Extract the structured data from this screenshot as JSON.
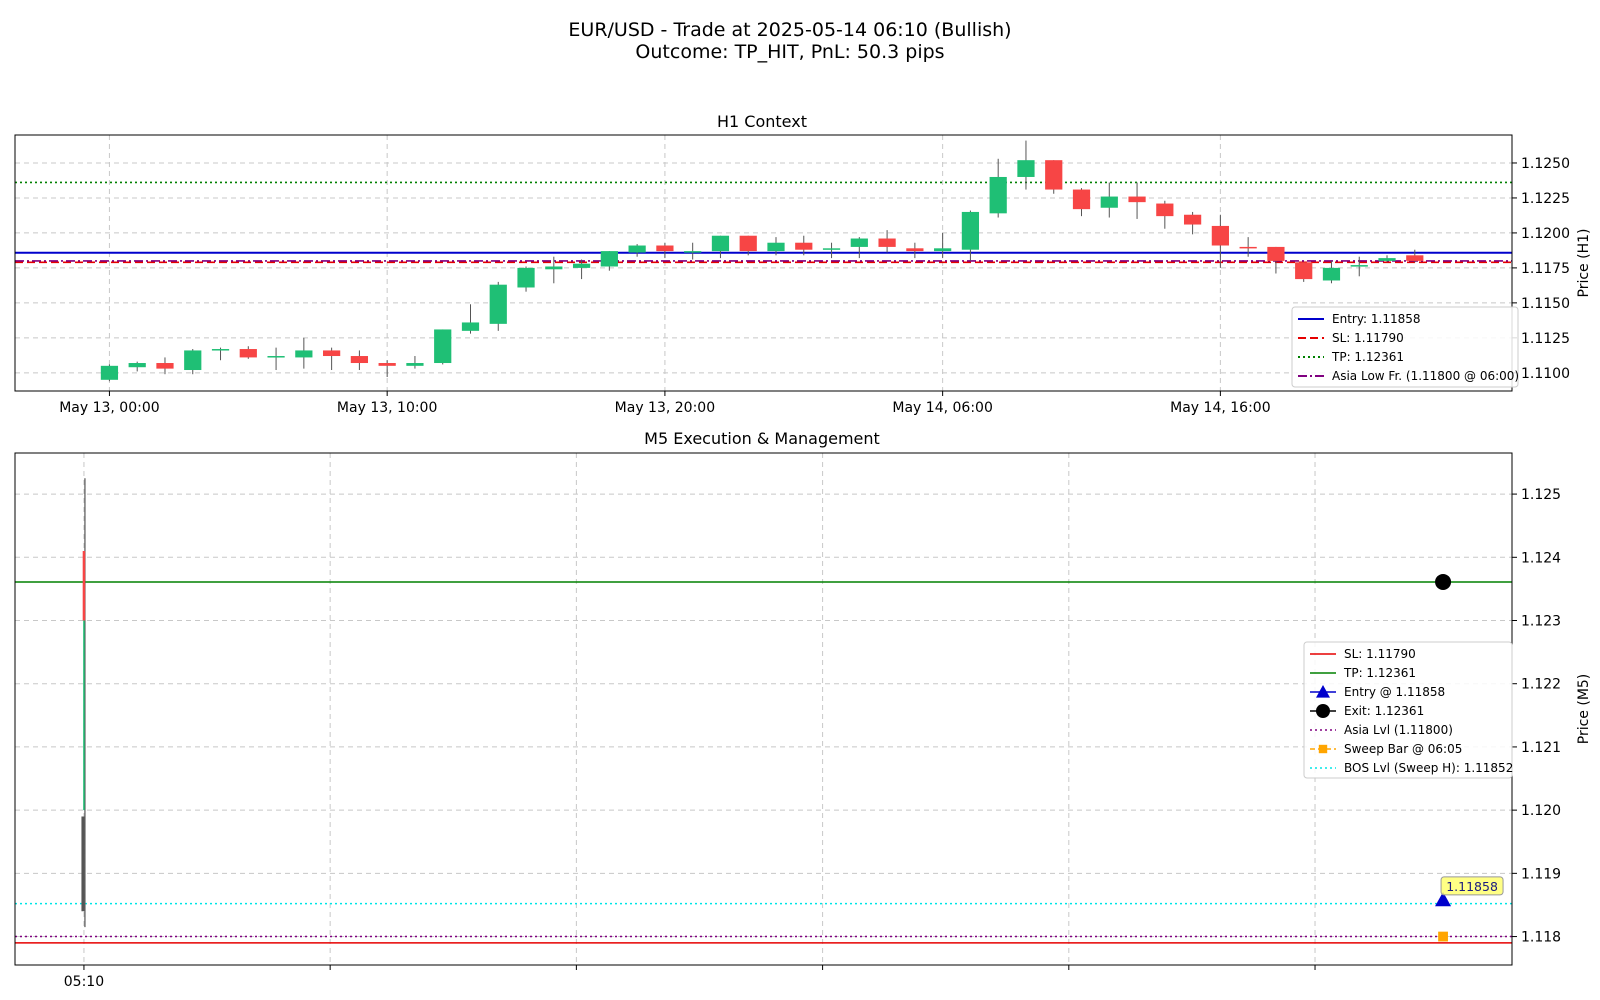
{
  "figure": {
    "title_line1": "EUR/USD - Trade at 2025-05-14 06:10 (Bullish)",
    "title_line2": "Outcome: TP_HIT, PnL: 50.3 pips"
  },
  "colors": {
    "bull": "#1fbf75",
    "bear": "#f74545",
    "entry": "#0000cc",
    "sl": "#e60000",
    "tp": "#008000",
    "asia": "#800080",
    "sweep": "#ffa500",
    "bos": "#00e5e5",
    "grid": "#c8c8c8"
  },
  "chart_data": [
    {
      "type": "candlestick",
      "title": "H1 Context",
      "ylabel": "Price (H1)",
      "ylim": [
        1.1087,
        1.127
      ],
      "yticks": [
        "1.1100",
        "1.1125",
        "1.1150",
        "1.1175",
        "1.1200",
        "1.1225",
        "1.1250"
      ],
      "ytick_values": [
        1.11,
        1.1125,
        1.115,
        1.1175,
        1.12,
        1.1225,
        1.125
      ],
      "xtick_labels": [
        "May 13, 00:00",
        "May 13, 10:00",
        "May 13, 20:00",
        "May 14, 06:00",
        "May 14, 16:00"
      ],
      "xtick_index": [
        0,
        10,
        20,
        30,
        40
      ],
      "x_index_range": [
        -3.4,
        50.5
      ],
      "grid": true,
      "legend_position": "lower-right",
      "levels": [
        {
          "name": "Entry: 1.11858",
          "value": 1.11858,
          "style": "solid",
          "color_key": "entry"
        },
        {
          "name": "SL: 1.11790",
          "value": 1.1179,
          "style": "dashed",
          "color_key": "sl"
        },
        {
          "name": "TP: 1.12361",
          "value": 1.12361,
          "style": "dotted",
          "color_key": "tp"
        },
        {
          "name": "Asia Low Fr. (1.11800 @ 06:00)",
          "value": 1.118,
          "style": "dashdot",
          "color_key": "asia"
        }
      ],
      "candles": [
        [
          1.1095,
          1.1106,
          1.1094,
          1.1105
        ],
        [
          1.1104,
          1.1108,
          1.1101,
          1.1107
        ],
        [
          1.1107,
          1.1111,
          1.1099,
          1.1103
        ],
        [
          1.1102,
          1.1117,
          1.1099,
          1.1116
        ],
        [
          1.1116,
          1.1118,
          1.1109,
          1.1117
        ],
        [
          1.1117,
          1.1119,
          1.111,
          1.1111
        ],
        [
          1.1112,
          1.1118,
          1.1102,
          1.1112
        ],
        [
          1.1111,
          1.1125,
          1.1103,
          1.1116
        ],
        [
          1.1116,
          1.1118,
          1.1102,
          1.1112
        ],
        [
          1.1112,
          1.1116,
          1.1102,
          1.1107
        ],
        [
          1.1107,
          1.1109,
          1.1097,
          1.1105
        ],
        [
          1.1105,
          1.1112,
          1.1103,
          1.1107
        ],
        [
          1.1107,
          1.1131,
          1.1106,
          1.1131
        ],
        [
          1.113,
          1.1149,
          1.1128,
          1.1136
        ],
        [
          1.1135,
          1.1165,
          1.113,
          1.1163
        ],
        [
          1.1161,
          1.1176,
          1.1158,
          1.1175
        ],
        [
          1.1174,
          1.1183,
          1.1164,
          1.1176
        ],
        [
          1.1175,
          1.1181,
          1.1167,
          1.1178
        ],
        [
          1.1176,
          1.1187,
          1.1173,
          1.1187
        ],
        [
          1.1186,
          1.1192,
          1.1183,
          1.1191
        ],
        [
          1.1191,
          1.1193,
          1.1182,
          1.1187
        ],
        [
          1.1187,
          1.1193,
          1.1181,
          1.1187
        ],
        [
          1.1187,
          1.1198,
          1.1182,
          1.1198
        ],
        [
          1.1198,
          1.1198,
          1.1184,
          1.1187
        ],
        [
          1.1187,
          1.1197,
          1.1184,
          1.1193
        ],
        [
          1.1193,
          1.1198,
          1.1184,
          1.1188
        ],
        [
          1.1188,
          1.1193,
          1.1182,
          1.1189
        ],
        [
          1.119,
          1.1197,
          1.1182,
          1.1196
        ],
        [
          1.1196,
          1.1202,
          1.1186,
          1.119
        ],
        [
          1.1189,
          1.1193,
          1.1182,
          1.1187
        ],
        [
          1.1187,
          1.12,
          1.1182,
          1.1189
        ],
        [
          1.1188,
          1.1216,
          1.118,
          1.1215
        ],
        [
          1.1214,
          1.1253,
          1.1211,
          1.124
        ],
        [
          1.124,
          1.1266,
          1.1231,
          1.1252
        ],
        [
          1.1252,
          1.1252,
          1.1228,
          1.1231
        ],
        [
          1.1231,
          1.1232,
          1.1212,
          1.1217
        ],
        [
          1.1218,
          1.1236,
          1.1211,
          1.1226
        ],
        [
          1.1226,
          1.1236,
          1.121,
          1.1222
        ],
        [
          1.1221,
          1.1223,
          1.1203,
          1.1212
        ],
        [
          1.1213,
          1.1215,
          1.1199,
          1.1206
        ],
        [
          1.1205,
          1.1213,
          1.1175,
          1.1191
        ],
        [
          1.119,
          1.1197,
          1.1183,
          1.1189
        ],
        [
          1.119,
          1.119,
          1.1171,
          1.118
        ],
        [
          1.1179,
          1.1179,
          1.1165,
          1.1167
        ],
        [
          1.1166,
          1.118,
          1.1164,
          1.1175
        ],
        [
          1.1177,
          1.1183,
          1.1169,
          1.1177
        ],
        [
          1.118,
          1.1184,
          1.1179,
          1.1182
        ],
        [
          1.1184,
          1.1188,
          1.1179,
          1.118
        ]
      ]
    },
    {
      "type": "line",
      "title": "M5 Execution & Management",
      "ylabel": "Price (M5)",
      "ylim": [
        1.11755,
        1.12565
      ],
      "yticks": [
        "1.118",
        "1.119",
        "1.120",
        "1.121",
        "1.122",
        "1.123",
        "1.124",
        "1.125"
      ],
      "ytick_values": [
        1.118,
        1.119,
        1.12,
        1.121,
        1.122,
        1.123,
        1.124,
        1.125
      ],
      "xtick_labels": [
        "05:10",
        "",
        "",
        "",
        "",
        ""
      ],
      "xtick_index": [
        0,
        1,
        2,
        3,
        4,
        5
      ],
      "x_index_range": [
        -0.28,
        5.8
      ],
      "grid": true,
      "legend_position": "center-right",
      "levels": [
        {
          "name": "SL: 1.11790",
          "value": 1.1179,
          "style": "solid",
          "color_key": "sl"
        },
        {
          "name": "TP: 1.12361",
          "value": 1.12361,
          "style": "solid",
          "color_key": "tp"
        },
        {
          "name": "Asia Lvl (1.11800)",
          "value": 1.118,
          "style": "dotted",
          "color_key": "asia"
        },
        {
          "name": "BOS Lvl (Sweep H): 1.11852",
          "value": 1.11852,
          "style": "dotted",
          "color_key": "bos"
        }
      ],
      "markers": [
        {
          "name": "Entry @ 1.11858",
          "x": 5.52,
          "y": 1.11858,
          "shape": "triangle",
          "color_key": "entry"
        },
        {
          "name": "Exit: 1.12361",
          "x": 5.52,
          "y": 1.12361,
          "shape": "circle",
          "color_key": "black"
        },
        {
          "name": "Sweep Bar @ 06:05",
          "x": 5.52,
          "y": 1.118,
          "shape": "square",
          "color_key": "sweep"
        }
      ],
      "legend_order": [
        "SL: 1.11790",
        "TP: 1.12361",
        "Entry @ 1.11858",
        "Exit: 1.12361",
        "Asia Lvl (1.11800)",
        "Sweep Bar @ 06:05",
        "BOS Lvl (Sweep H): 1.11852"
      ],
      "entry_annotation": "1.11858",
      "price_spike": {
        "x": 0.0,
        "low": 1.11815,
        "high": 1.12525
      }
    }
  ]
}
